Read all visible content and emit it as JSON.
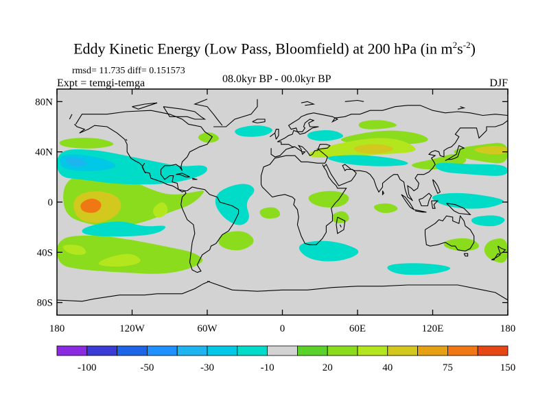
{
  "title": {
    "main": "Eddy Kinetic Energy (Low Pass, Bloomfield) at 200 hPa (in m",
    "sup1": "2",
    "mid": "s",
    "sup2": "-2",
    "end": ")"
  },
  "stats": "rmsd= 11.735 diff= 0.151573",
  "experiment": "Expt = temgi-temga",
  "period": "08.0kyr BP - 00.0kyr BP",
  "season": "DJF",
  "map": {
    "projection": "cylindrical equidistant",
    "lon_range": [
      -180,
      180
    ],
    "lat_range": [
      -90,
      90
    ],
    "ocean_background": "#d3d3d3",
    "lat_ticks": [
      {
        "value": 80,
        "label": "80N"
      },
      {
        "value": 40,
        "label": "40N"
      },
      {
        "value": 0,
        "label": "0"
      },
      {
        "value": -40,
        "label": "40S"
      },
      {
        "value": -80,
        "label": "80S"
      }
    ],
    "lon_ticks": [
      {
        "value": -180,
        "label": "180"
      },
      {
        "value": -120,
        "label": "120W"
      },
      {
        "value": -60,
        "label": "60W"
      },
      {
        "value": 0,
        "label": "0"
      },
      {
        "value": 60,
        "label": "60E"
      },
      {
        "value": 120,
        "label": "120E"
      },
      {
        "value": 180,
        "label": "180"
      }
    ]
  },
  "colorbar": {
    "colors": [
      "#8a2be2",
      "#3b3bd6",
      "#1e64e6",
      "#1e90ff",
      "#1eb4f0",
      "#00c8e6",
      "#00dcc8",
      "#d3d3d3",
      "#5ad22a",
      "#8cdc1e",
      "#b4e61e",
      "#d2c81e",
      "#e6a014",
      "#f07814",
      "#e64614"
    ],
    "labels": [
      {
        "after": 1,
        "text": "-100"
      },
      {
        "after": 3,
        "text": "-50"
      },
      {
        "after": 5,
        "text": "-30"
      },
      {
        "after": 7,
        "text": "-10"
      },
      {
        "after": 9,
        "text": "20"
      },
      {
        "after": 11,
        "text": "40"
      },
      {
        "after": 13,
        "text": "75"
      },
      {
        "after": 15,
        "text": "150"
      }
    ]
  },
  "anomalies": [
    {
      "level": 11,
      "pts": [
        [
          -178,
          36
        ],
        [
          -160,
          40
        ],
        [
          -150,
          36
        ],
        [
          -160,
          33
        ],
        [
          -178,
          32
        ]
      ]
    },
    {
      "level": 9,
      "pts": [
        [
          -175,
          18
        ],
        [
          -150,
          24
        ],
        [
          -125,
          20
        ],
        [
          -110,
          12
        ],
        [
          -90,
          5
        ],
        [
          -70,
          8
        ],
        [
          -60,
          10
        ],
        [
          -72,
          -2
        ],
        [
          -90,
          -8
        ],
        [
          -110,
          -16
        ],
        [
          -130,
          -20
        ],
        [
          -155,
          -18
        ],
        [
          -175,
          -10
        ]
      ]
    },
    {
      "level": 11,
      "pts": [
        [
          -168,
          4
        ],
        [
          -150,
          10
        ],
        [
          -130,
          5
        ],
        [
          -128,
          -8
        ],
        [
          -145,
          -18
        ],
        [
          -165,
          -14
        ]
      ]
    },
    {
      "level": 13,
      "pts": [
        [
          -162,
          -1
        ],
        [
          -152,
          4
        ],
        [
          -143,
          -1
        ],
        [
          -148,
          -9
        ],
        [
          -160,
          -8
        ]
      ]
    },
    {
      "level": 10,
      "pts": [
        [
          -105,
          -6
        ],
        [
          -95,
          2
        ],
        [
          -90,
          -8
        ],
        [
          -100,
          -14
        ]
      ]
    },
    {
      "level": 9,
      "pts": [
        [
          -180,
          -28
        ],
        [
          -150,
          -26
        ],
        [
          -120,
          -30
        ],
        [
          -90,
          -36
        ],
        [
          -70,
          -40
        ],
        [
          -60,
          -48
        ],
        [
          -90,
          -58
        ],
        [
          -130,
          -56
        ],
        [
          -160,
          -54
        ],
        [
          -180,
          -50
        ]
      ]
    },
    {
      "level": 10,
      "pts": [
        [
          -140,
          -44
        ],
        [
          -120,
          -40
        ],
        [
          -110,
          -48
        ],
        [
          -130,
          -52
        ],
        [
          -150,
          -50
        ]
      ]
    },
    {
      "level": 10,
      "pts": [
        [
          -178,
          -34
        ],
        [
          -160,
          -34
        ],
        [
          -155,
          -42
        ],
        [
          -170,
          -42
        ]
      ]
    },
    {
      "level": 6,
      "pts": [
        [
          -180,
          42
        ],
        [
          -150,
          42
        ],
        [
          -120,
          36
        ],
        [
          -100,
          32
        ],
        [
          -80,
          28
        ],
        [
          -60,
          30
        ],
        [
          -60,
          22
        ],
        [
          -90,
          14
        ],
        [
          -130,
          14
        ],
        [
          -160,
          18
        ],
        [
          -180,
          20
        ]
      ]
    },
    {
      "level": 5,
      "pts": [
        [
          -178,
          38
        ],
        [
          -160,
          38
        ],
        [
          -140,
          34
        ],
        [
          -130,
          28
        ],
        [
          -150,
          24
        ],
        [
          -178,
          26
        ]
      ]
    },
    {
      "level": 4,
      "pts": [
        [
          -175,
          36
        ],
        [
          -160,
          35
        ],
        [
          -155,
          29
        ],
        [
          -170,
          28
        ]
      ]
    },
    {
      "level": 6,
      "pts": [
        [
          -110,
          28
        ],
        [
          -95,
          30
        ],
        [
          -85,
          25
        ],
        [
          -100,
          20
        ]
      ]
    },
    {
      "level": 6,
      "pts": [
        [
          -160,
          -20
        ],
        [
          -130,
          -14
        ],
        [
          -110,
          -20
        ],
        [
          -90,
          -18
        ],
        [
          -100,
          -26
        ],
        [
          -135,
          -28
        ],
        [
          -160,
          -26
        ]
      ]
    },
    {
      "level": 9,
      "pts": [
        [
          -70,
          52
        ],
        [
          -58,
          57
        ],
        [
          -48,
          50
        ],
        [
          -60,
          46
        ]
      ]
    },
    {
      "level": 9,
      "pts": [
        [
          -178,
          50
        ],
        [
          -150,
          52
        ],
        [
          -130,
          46
        ],
        [
          -150,
          42
        ],
        [
          -178,
          44
        ]
      ]
    },
    {
      "level": 6,
      "pts": [
        [
          -50,
          10
        ],
        [
          -30,
          16
        ],
        [
          -20,
          10
        ],
        [
          -30,
          0
        ],
        [
          -25,
          -14
        ],
        [
          -35,
          -20
        ],
        [
          -48,
          -12
        ],
        [
          -55,
          0
        ]
      ]
    },
    {
      "level": 6,
      "pts": [
        [
          -40,
          58
        ],
        [
          -20,
          62
        ],
        [
          -5,
          58
        ],
        [
          -15,
          52
        ],
        [
          -35,
          52
        ]
      ]
    },
    {
      "level": 6,
      "pts": [
        [
          20,
          56
        ],
        [
          40,
          58
        ],
        [
          52,
          52
        ],
        [
          35,
          48
        ],
        [
          20,
          50
        ]
      ]
    },
    {
      "level": 9,
      "pts": [
        [
          -50,
          -25
        ],
        [
          -30,
          -22
        ],
        [
          -20,
          -32
        ],
        [
          -35,
          -40
        ],
        [
          -52,
          -35
        ]
      ]
    },
    {
      "level": 9,
      "pts": [
        [
          20,
          6
        ],
        [
          40,
          10
        ],
        [
          55,
          5
        ],
        [
          50,
          -3
        ],
        [
          35,
          -5
        ],
        [
          22,
          -1
        ]
      ]
    },
    {
      "level": 9,
      "pts": [
        [
          -20,
          -6
        ],
        [
          -5,
          -3
        ],
        [
          0,
          -12
        ],
        [
          -15,
          -14
        ]
      ]
    },
    {
      "level": 9,
      "pts": [
        [
          38,
          -10
        ],
        [
          50,
          -6
        ],
        [
          55,
          -15
        ],
        [
          42,
          -18
        ]
      ]
    },
    {
      "level": 9,
      "pts": [
        [
          70,
          -3
        ],
        [
          85,
          0
        ],
        [
          95,
          -6
        ],
        [
          80,
          -10
        ]
      ]
    },
    {
      "level": 6,
      "pts": [
        [
          10,
          -34
        ],
        [
          30,
          -30
        ],
        [
          50,
          -33
        ],
        [
          65,
          -40
        ],
        [
          45,
          -48
        ],
        [
          20,
          -46
        ]
      ]
    },
    {
      "level": 9,
      "pts": [
        [
          40,
          50
        ],
        [
          80,
          58
        ],
        [
          110,
          55
        ],
        [
          120,
          48
        ],
        [
          90,
          45
        ],
        [
          60,
          46
        ]
      ]
    },
    {
      "level": 10,
      "pts": [
        [
          20,
          40
        ],
        [
          50,
          48
        ],
        [
          80,
          52
        ],
        [
          100,
          48
        ],
        [
          110,
          40
        ],
        [
          80,
          38
        ],
        [
          50,
          36
        ],
        [
          22,
          35
        ]
      ]
    },
    {
      "level": 11,
      "pts": [
        [
          55,
          44
        ],
        [
          75,
          47
        ],
        [
          92,
          43
        ],
        [
          80,
          38
        ],
        [
          60,
          39
        ]
      ]
    },
    {
      "level": 6,
      "pts": [
        [
          30,
          36
        ],
        [
          60,
          38
        ],
        [
          90,
          35
        ],
        [
          105,
          30
        ],
        [
          80,
          28
        ],
        [
          50,
          30
        ]
      ]
    },
    {
      "level": 9,
      "pts": [
        [
          100,
          30
        ],
        [
          120,
          34
        ],
        [
          140,
          40
        ],
        [
          150,
          32
        ],
        [
          130,
          26
        ],
        [
          110,
          26
        ]
      ]
    },
    {
      "level": 9,
      "pts": [
        [
          135,
          42
        ],
        [
          160,
          46
        ],
        [
          180,
          48
        ],
        [
          180,
          30
        ],
        [
          160,
          32
        ],
        [
          140,
          36
        ]
      ]
    },
    {
      "level": 11,
      "pts": [
        [
          150,
          42
        ],
        [
          165,
          45
        ],
        [
          180,
          44
        ],
        [
          180,
          38
        ],
        [
          162,
          38
        ]
      ]
    },
    {
      "level": 6,
      "pts": [
        [
          120,
          32
        ],
        [
          150,
          30
        ],
        [
          180,
          30
        ],
        [
          180,
          20
        ],
        [
          150,
          22
        ],
        [
          125,
          24
        ]
      ]
    },
    {
      "level": 6,
      "pts": [
        [
          115,
          5
        ],
        [
          140,
          8
        ],
        [
          170,
          4
        ],
        [
          180,
          0
        ],
        [
          160,
          -6
        ],
        [
          130,
          -4
        ]
      ]
    },
    {
      "level": 6,
      "pts": [
        [
          150,
          -12
        ],
        [
          170,
          -10
        ],
        [
          180,
          -14
        ],
        [
          170,
          -20
        ],
        [
          152,
          -18
        ]
      ]
    },
    {
      "level": 9,
      "pts": [
        [
          130,
          -30
        ],
        [
          150,
          -28
        ],
        [
          160,
          -36
        ],
        [
          145,
          -40
        ],
        [
          128,
          -36
        ]
      ]
    },
    {
      "level": 9,
      "pts": [
        [
          165,
          -30
        ],
        [
          180,
          -28
        ],
        [
          180,
          -50
        ],
        [
          165,
          -46
        ],
        [
          160,
          -38
        ]
      ]
    },
    {
      "level": 6,
      "pts": [
        [
          80,
          -50
        ],
        [
          110,
          -48
        ],
        [
          140,
          -52
        ],
        [
          120,
          -58
        ],
        [
          90,
          -58
        ]
      ]
    },
    {
      "level": 9,
      "pts": [
        [
          60,
          64
        ],
        [
          80,
          66
        ],
        [
          95,
          61
        ],
        [
          80,
          58
        ],
        [
          62,
          58
        ]
      ]
    }
  ]
}
